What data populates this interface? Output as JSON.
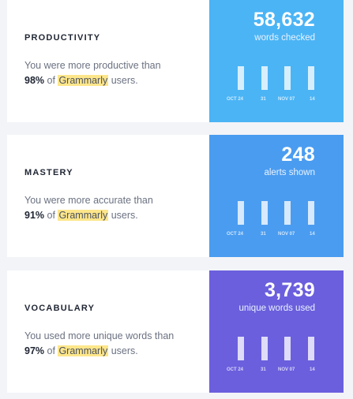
{
  "cards": [
    {
      "heading": "PRODUCTIVITY",
      "desc_prefix": "You were more productive than",
      "percent": "98%",
      "of": "of",
      "brand": "Grammarly",
      "desc_suffix": "users.",
      "stat_value": "58,632",
      "stat_label": "words checked",
      "panel_color": "#4bb4f5",
      "bar_levels": [
        1,
        1,
        1,
        1
      ],
      "ticks": [
        "OCT 24",
        "31",
        "NOV 07",
        "14"
      ]
    },
    {
      "heading": "MASTERY",
      "desc_prefix": "You were more accurate than",
      "percent": "91%",
      "of": "of",
      "brand": "Grammarly",
      "desc_suffix": "users.",
      "stat_value": "248",
      "stat_label": "alerts shown",
      "panel_color": "#4a9cf0",
      "bar_levels": [
        1,
        1,
        1,
        1
      ],
      "ticks": [
        "OCT 24",
        "31",
        "NOV 07",
        "14"
      ]
    },
    {
      "heading": "VOCABULARY",
      "desc_prefix": "You used more unique words than",
      "percent": "97%",
      "of": "of",
      "brand": "Grammarly",
      "desc_suffix": "users.",
      "stat_value": "3,739",
      "stat_label": "unique words used",
      "panel_color": "#6b5fdd",
      "bar_levels": [
        1,
        1,
        1,
        1
      ],
      "ticks": [
        "OCT 24",
        "31",
        "NOV 07",
        "14"
      ]
    }
  ]
}
